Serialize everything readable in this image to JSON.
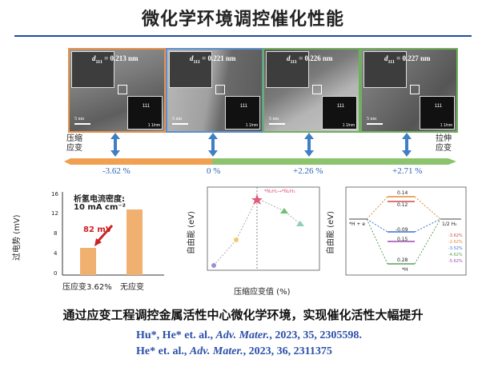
{
  "title": "微化学环境调控催化性能",
  "tem_panels": [
    {
      "d": "d",
      "sub": "111",
      "value": "= 0.213 nm",
      "border": "#e8914a",
      "scale": "5 nm",
      "fft_index": "111",
      "fft_scale": "1 1/nm"
    },
    {
      "d": "d",
      "sub": "111",
      "value": "= 0.221 nm",
      "border": "#5b8fcf",
      "scale": "5 nm",
      "fft_index": "111",
      "fft_scale": "1 1/nm"
    },
    {
      "d": "d",
      "sub": "111",
      "value": "= 0.226 nm",
      "border": "#6fb05c",
      "scale": "5 nm",
      "fft_index": "111",
      "fft_scale": "1 1/nm"
    },
    {
      "d": "d",
      "sub": "111",
      "value": "= 0.227 nm",
      "border": "#6fb05c",
      "scale": "5 nm",
      "fft_index": "111",
      "fft_scale": "1 1/nm"
    }
  ],
  "left_axis_label": [
    "压缩",
    "应变"
  ],
  "right_axis_label": [
    "拉伸",
    "应变"
  ],
  "strain_values": [
    "-3.62 %",
    "0 %",
    "+2.26 %",
    "+2.71 %"
  ],
  "colors": {
    "compressive": "#f0a050",
    "tensile": "#6fb05c",
    "blue": "#2b4fa8",
    "arrow": "#3f7fc4"
  },
  "bar_chart": {
    "annotation_line1": "析氢电流密度:",
    "annotation_line2": "10 mA cm⁻²",
    "red_value": "82 mV",
    "ylabel": "过电势 (mV)",
    "ticks": [
      "16",
      "12",
      "8",
      "4",
      "0"
    ],
    "categories": [
      "压应变3.62%",
      "无应变"
    ]
  },
  "scatter_chart": {
    "ylabel": "自由能 (eV)",
    "xlabel": "压缩应变值 (%)",
    "legend": "*N₂H₂→*N₂H₃",
    "yticks": [
      "0.20",
      "0.15",
      "0.10",
      "0.05",
      "0.00",
      "-0.05",
      "-0.10",
      "-0.15",
      "-0.20",
      "-0.25"
    ],
    "xticks": [
      "-6",
      "-5",
      "-4",
      "-3",
      "-2",
      "-1"
    ]
  },
  "diagram_chart": {
    "ylabel": "自由能 (eV)",
    "yticks": [
      "0.2",
      "0.1",
      "0.0",
      "-0.1",
      "-0.2",
      "-0.3"
    ],
    "levels": [
      "0.14",
      "0.12",
      "-0.09",
      "0.15",
      "0.28"
    ],
    "left_label": "*H + e",
    "right_label": "1/2 H₂",
    "bottom_label": "*H",
    "legend": [
      "-3.62%",
      "-2.62%",
      "-3.52%",
      "-4.62%",
      "-5.62%"
    ],
    "legend_colors": [
      "#d04a4a",
      "#e08a3c",
      "#3c6fd0",
      "#5aa05a",
      "#9a4ab0"
    ]
  },
  "summary": "通过应变工程调控金属活性中心微化学环境，实现催化活性大幅提升",
  "refs": [
    {
      "authors": "Hu*, He* et. al., ",
      "journal": "Adv. Mater.",
      "rest": ", 2023, 35, 2305598."
    },
    {
      "authors": "He* et. al., ",
      "journal": "Adv. Mater.",
      "rest": ", 2023, 36, 2311375"
    }
  ]
}
